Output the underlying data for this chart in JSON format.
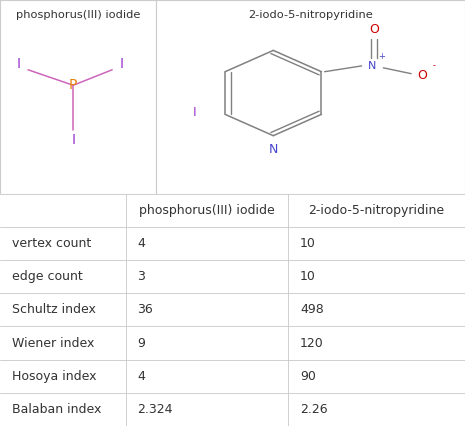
{
  "col_headers": [
    "",
    "phosphorus(III) iodide",
    "2-iodo-5-nitropyridine"
  ],
  "row_labels": [
    "vertex count",
    "edge count",
    "Schultz index",
    "Wiener index",
    "Hosoya index",
    "Balaban index"
  ],
  "col1_values": [
    "4",
    "3",
    "36",
    "9",
    "4",
    "2.324"
  ],
  "col2_values": [
    "10",
    "10",
    "498",
    "120",
    "90",
    "2.26"
  ],
  "bg_color": "#ffffff",
  "border_color": "#cccccc",
  "text_color": "#333333",
  "font_size": 9,
  "p_color": "#e8820c",
  "i_color": "#9933cc",
  "ring_color": "#808080",
  "n_color": "#4444cc",
  "o_color": "#cc0000"
}
